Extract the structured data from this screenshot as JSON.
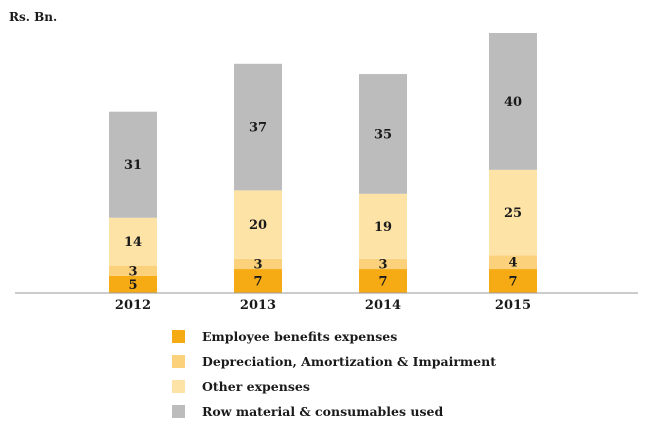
{
  "chart_data": {
    "type": "bar",
    "stacked": true,
    "unit_label": "Rs. Bn.",
    "categories": [
      "2012",
      "2013",
      "2014",
      "2015"
    ],
    "series": [
      {
        "name": "Employee benefits expenses",
        "values": [
          5,
          7,
          7,
          7
        ],
        "color": "#f6ab14"
      },
      {
        "name": "Depreciation, Amortization & Impairment",
        "values": [
          3,
          3,
          3,
          4
        ],
        "color": "#fbd27b"
      },
      {
        "name": "Other expenses",
        "values": [
          14,
          20,
          19,
          25
        ],
        "color": "#fee3a7"
      },
      {
        "name": "Row material & consumables used",
        "values": [
          31,
          37,
          35,
          40
        ],
        "color": "#bcbcbc"
      }
    ],
    "ylim": [
      0,
      76
    ],
    "grid": false,
    "legend_position": "bottom"
  }
}
